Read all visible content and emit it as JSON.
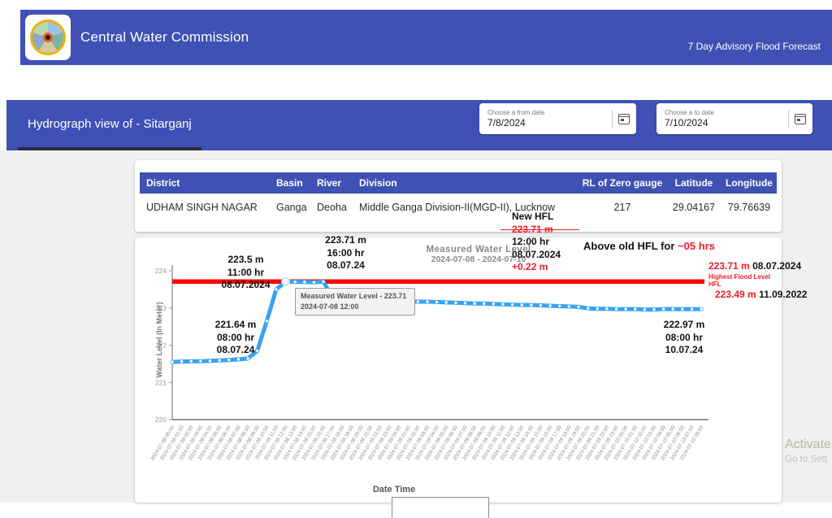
{
  "header": {
    "title": "Central Water Commission",
    "right_link": "7 Day Advisory Flood Forecast",
    "brand_color": "#3f51b5"
  },
  "toolbar": {
    "title": "Hydrograph view of - Sitarganj",
    "from_date": {
      "label": "Choose a from date",
      "value": "7/8/2024"
    },
    "to_date": {
      "label": "Choose a to date",
      "value": "7/10/2024"
    }
  },
  "station_table": {
    "columns": [
      "District",
      "Basin",
      "River",
      "Division",
      "RL of Zero gauge",
      "Latitude",
      "Longitude"
    ],
    "row": {
      "district": "UDHAM SINGH NAGAR",
      "basin": "Ganga",
      "river": "Deoha",
      "division": "Middle Ganga Division-II(MGD-II), Lucknow",
      "rl_zero_gauge": "217",
      "latitude": "29.04167",
      "longitude": "79.76639"
    }
  },
  "annotations": {
    "rise_point": {
      "l1": "223.5 m",
      "l2": "11:00 hr",
      "l3": "08.07.2024"
    },
    "peak_point": {
      "l1": "223.71 m",
      "l2": "16:00 hr",
      "l3": "08.07.24"
    },
    "new_hfl": {
      "t": "New HFL",
      "level": "223.71 m",
      "time": "12:00 hr",
      "date": "08.07.2024",
      "delta": "+0.22 m"
    },
    "above_old": {
      "black": "Above old HFL for ",
      "red": "~05 hrs"
    },
    "hfl_right": {
      "new_level": "223.71 m",
      "new_date": "08.07.2024",
      "cap1": "Highest Flood Level",
      "cap2": "HFL",
      "old_level": "223.49 m",
      "old_date": "11.09.2022"
    },
    "start_point": {
      "l1": "221.64 m",
      "l2": "08:00 hr",
      "l3": "08.07.24"
    },
    "end_point": {
      "l1": "222.97 m",
      "l2": "08:00 hr",
      "l3": "10.07.24"
    }
  },
  "tooltip": {
    "line1": "Measured Water Level - 223.71",
    "line2": "2024-07-08 12:00"
  },
  "watermark": {
    "line1": "Activate",
    "line2": "Go to Sett"
  },
  "chart_data": {
    "type": "line",
    "title": "Measured Water Level",
    "subtitle": "2024-07-08 - 2024-07-10",
    "xlabel": "Date Time",
    "ylabel": "Water Level (In Meter)",
    "ylim": [
      220,
      224
    ],
    "yticks": [
      220,
      221,
      222,
      223,
      224
    ],
    "grid": false,
    "line_color": "#38a3f1",
    "marker_color": "#ffffff",
    "hfl_line": {
      "value": 223.71,
      "color": "#ff0000",
      "label": "Highest Flood Level HFL"
    },
    "highlight_index": 12,
    "x": [
      "2024-07-08 00:00",
      "2024-07-08 01:00",
      "2024-07-08 02:00",
      "2024-07-08 03:00",
      "2024-07-08 04:00",
      "2024-07-08 05:00",
      "2024-07-08 06:00",
      "2024-07-08 07:00",
      "2024-07-08 08:00",
      "2024-07-08 09:00",
      "2024-07-08 10:00",
      "2024-07-08 11:00",
      "2024-07-08 12:00",
      "2024-07-08 13:00",
      "2024-07-08 14:00",
      "2024-07-08 15:00",
      "2024-07-08 16:00",
      "2024-07-08 17:00",
      "2024-07-08 18:00",
      "2024-07-08 19:00",
      "2024-07-08 20:00",
      "2024-07-08 21:00",
      "2024-07-08 22:00",
      "2024-07-08 23:00",
      "2024-07-09 00:00",
      "2024-07-09 01:00",
      "2024-07-09 02:00",
      "2024-07-09 03:00",
      "2024-07-09 04:00",
      "2024-07-09 05:00",
      "2024-07-09 06:00",
      "2024-07-09 07:00",
      "2024-07-09 08:00",
      "2024-07-09 09:00",
      "2024-07-09 10:00",
      "2024-07-09 11:00",
      "2024-07-09 12:00",
      "2024-07-09 13:00",
      "2024-07-09 14:00",
      "2024-07-09 15:00",
      "2024-07-09 16:00",
      "2024-07-09 17:00",
      "2024-07-09 18:00",
      "2024-07-09 19:00",
      "2024-07-09 20:00",
      "2024-07-09 21:00",
      "2024-07-09 22:00",
      "2024-07-09 23:00",
      "2024-07-10 00:00",
      "2024-07-10 01:00",
      "2024-07-10 02:00",
      "2024-07-10 03:00",
      "2024-07-10 04:00",
      "2024-07-10 05:00",
      "2024-07-10 06:00",
      "2024-07-10 07:00",
      "2024-07-10 08:00"
    ],
    "series": [
      {
        "name": "Measured Water Level",
        "values": [
          221.55,
          221.56,
          221.57,
          221.57,
          221.58,
          221.59,
          221.6,
          221.62,
          221.64,
          221.85,
          222.65,
          223.5,
          223.71,
          223.7,
          223.7,
          223.69,
          223.71,
          223.26,
          223.24,
          223.23,
          223.22,
          223.21,
          223.21,
          223.2,
          223.19,
          223.18,
          223.17,
          223.17,
          223.16,
          223.15,
          223.14,
          223.13,
          223.12,
          223.12,
          223.11,
          223.1,
          223.09,
          223.08,
          223.08,
          223.07,
          223.06,
          223.05,
          223.04,
          223.03,
          222.99,
          222.98,
          222.98,
          222.97,
          222.97,
          222.97,
          222.96,
          222.96,
          222.97,
          222.97,
          222.97,
          222.97,
          222.97
        ]
      }
    ]
  }
}
